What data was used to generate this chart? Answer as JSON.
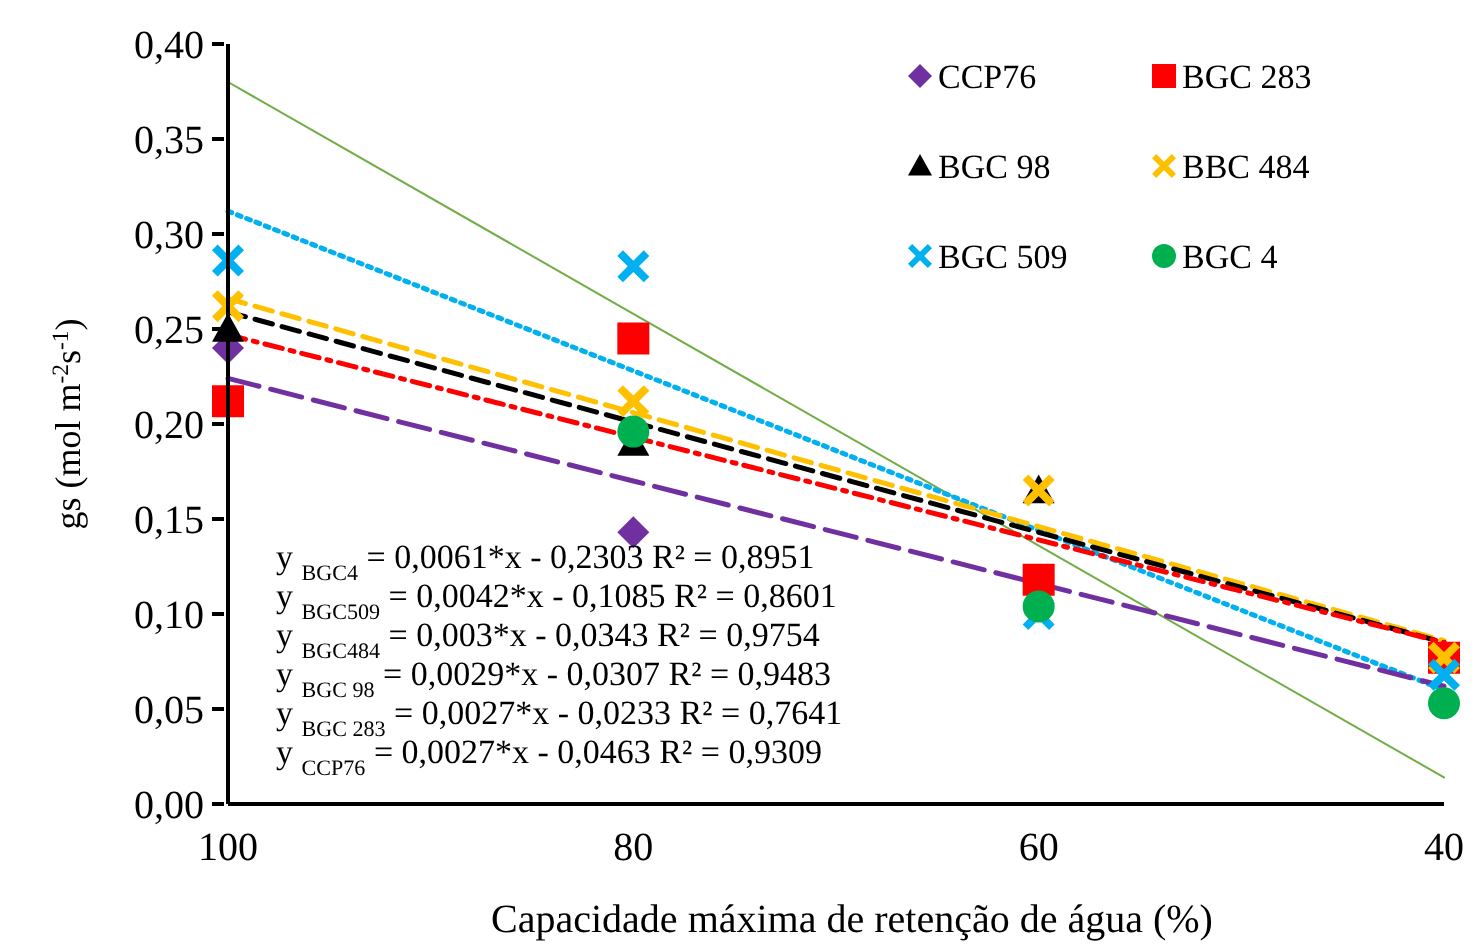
{
  "chart_data": {
    "type": "scatter",
    "xlabel": "Capacidade máxima de retenção de água (%)",
    "ylabel": "gs (mol m$^{-2}$s$^{-1}$)",
    "x": [
      100,
      80,
      60,
      40
    ],
    "xlim": [
      100,
      40
    ],
    "xticks": [
      100,
      80,
      60,
      40
    ],
    "ylim": [
      0,
      0.4
    ],
    "yticks": [
      {
        "value": 0,
        "label": "0,00"
      },
      {
        "value": 0.05,
        "label": "0,05"
      },
      {
        "value": 0.1,
        "label": "0,10"
      },
      {
        "value": 0.15,
        "label": "0,15"
      },
      {
        "value": 0.2,
        "label": "0,20"
      },
      {
        "value": 0.25,
        "label": "0,25"
      },
      {
        "value": 0.3,
        "label": "0,30"
      },
      {
        "value": 0.35,
        "label": "0,35"
      },
      {
        "value": 0.4,
        "label": "0,40"
      }
    ],
    "grid": false,
    "legend": "top right",
    "series": [
      {
        "type": "line",
        "color": "#70ad47",
        "values": [
          0.38,
          0.258,
          0.136,
          0.014
        ],
        "line_style": "solid",
        "marker": "none"
      },
      {
        "type": "line",
        "color": "#00b0f0",
        "values": [
          0.312,
          0.228,
          0.144,
          0.06
        ],
        "line_style": "dotted",
        "marker": "none"
      },
      {
        "type": "line",
        "color": "#ffc000",
        "values": [
          0.266,
          0.206,
          0.146,
          0.086
        ],
        "line_style": "dashed",
        "marker": "none"
      },
      {
        "type": "line",
        "color": "#000000",
        "values": [
          0.259,
          0.201,
          0.143,
          0.085
        ],
        "line_style": "dashed",
        "marker": "none"
      },
      {
        "type": "line",
        "color": "#ff0000",
        "values": [
          0.247,
          0.193,
          0.139,
          0.085
        ],
        "line_style": "dashdot",
        "marker": "none"
      },
      {
        "type": "line",
        "color": "#7030a0",
        "values": [
          0.224,
          0.17,
          0.116,
          0.062
        ],
        "line_style": "longdash",
        "marker": "none"
      },
      {
        "name": "CCP76",
        "color": "#7030a0",
        "marker": "diamond",
        "values": [
          0.24,
          0.143,
          null,
          null
        ]
      },
      {
        "name": "BGC 283",
        "color": "#ff0000",
        "marker": "square",
        "values": [
          0.212,
          0.245,
          0.118,
          0.077
        ]
      },
      {
        "name": "BGC 98",
        "color": "#000000",
        "marker": "triangle",
        "values": [
          0.25,
          0.19,
          0.165,
          null
        ]
      },
      {
        "name": "BBC 484",
        "color": "#ffc000",
        "marker": "cross",
        "values": [
          0.262,
          0.212,
          0.165,
          0.077
        ]
      },
      {
        "name": "BGC 509",
        "color": "#00b0f0",
        "marker": "cross",
        "values": [
          0.286,
          0.283,
          0.1,
          0.068
        ]
      },
      {
        "name": "BGC 4",
        "color": "#00b050",
        "marker": "circle",
        "values": [
          null,
          0.196,
          0.104,
          0.053
        ]
      }
    ],
    "annotations": [
      "y $_{BGC4}$ = 0,0061*x - 0,2303  R² = 0,8951",
      "y $_{BGC509}$ = 0,0042*x - 0,1085  R² = 0,8601",
      "y $_{BGC484}$ = 0,003*x - 0,0343  R² = 0,9754",
      "y $_{BGC 98}$ = 0,0029*x - 0,0307  R² = 0,9483",
      "y $_{BGC 283}$ = 0,0027*x - 0,0233  R² = 0,7641",
      "y $_{CCP76}$ = 0,0027*x - 0,0463  R² = 0,9309"
    ]
  }
}
